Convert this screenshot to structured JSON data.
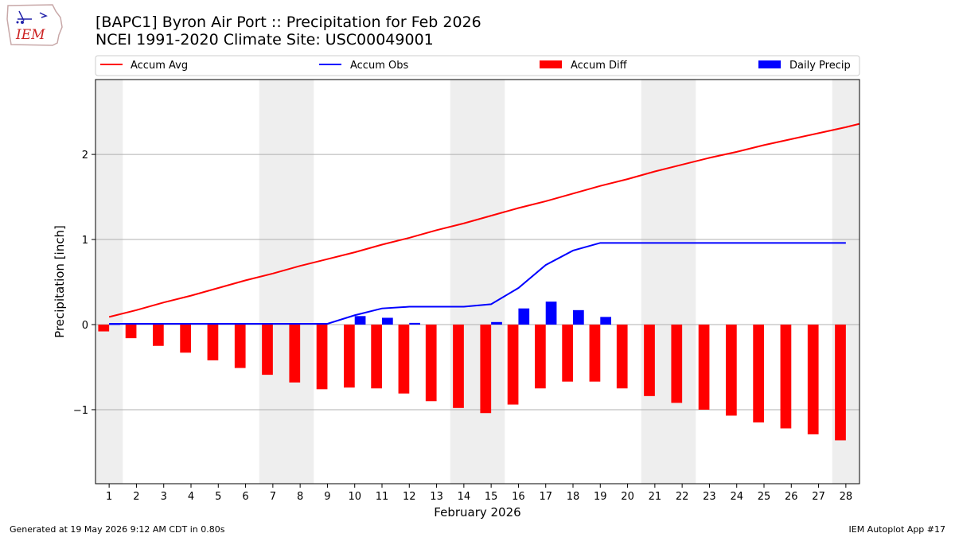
{
  "header": {
    "title_line1": "[BAPC1] Byron Air Port :: Precipitation for Feb 2026",
    "title_line2": "NCEI 1991-2020 Climate Site: USC00049001"
  },
  "logo": {
    "text": "IEM"
  },
  "footer": {
    "generated": "Generated at 19 May 2026 9:12 AM CDT in 0.80s",
    "app": "IEM Autoplot App #17"
  },
  "colors": {
    "avg": "#ff0000",
    "obs": "#0000ff",
    "diff": "#ff0000",
    "daily": "#0000ff",
    "weekend": "#eeeeee",
    "grid": "#b0b0b0"
  },
  "chart_data": {
    "type": "bar",
    "xlabel": "February 2026",
    "ylabel": "Precipitation [inch]",
    "ylim": [
      -1.87,
      2.88
    ],
    "xlim": [
      0.5,
      28.5
    ],
    "yticks": [
      -1,
      0,
      1,
      2
    ],
    "ytick_labels": [
      "−1",
      "0",
      "1",
      "2"
    ],
    "grid": "y",
    "legend_placement": "top, above plot",
    "days": [
      1,
      2,
      3,
      4,
      5,
      6,
      7,
      8,
      9,
      10,
      11,
      12,
      13,
      14,
      15,
      16,
      17,
      18,
      19,
      20,
      21,
      22,
      23,
      24,
      25,
      26,
      27,
      28
    ],
    "weekend_days": [
      1,
      7,
      8,
      14,
      15,
      21,
      22,
      28
    ],
    "series": [
      {
        "name": "Accum Avg",
        "kind": "line",
        "x": [
          1,
          2,
          3,
          4,
          5,
          6,
          7,
          8,
          9,
          10,
          11,
          12,
          13,
          14,
          15,
          16,
          17,
          18,
          19,
          20,
          21,
          22,
          23,
          24,
          25,
          26,
          27,
          28,
          28.5
        ],
        "values": [
          0.09,
          0.17,
          0.26,
          0.34,
          0.43,
          0.52,
          0.6,
          0.69,
          0.77,
          0.85,
          0.94,
          1.02,
          1.11,
          1.19,
          1.28,
          1.37,
          1.45,
          1.54,
          1.63,
          1.71,
          1.8,
          1.88,
          1.96,
          2.03,
          2.11,
          2.18,
          2.25,
          2.32,
          2.36
        ]
      },
      {
        "name": "Accum Obs",
        "kind": "line",
        "x": [
          1,
          2,
          3,
          4,
          5,
          6,
          7,
          8,
          9,
          10,
          11,
          12,
          13,
          14,
          15,
          16,
          17,
          18,
          19,
          20,
          21,
          22,
          23,
          24,
          25,
          26,
          27,
          28
        ],
        "values": [
          0.01,
          0.01,
          0.01,
          0.01,
          0.01,
          0.01,
          0.01,
          0.01,
          0.01,
          0.11,
          0.19,
          0.21,
          0.21,
          0.21,
          0.24,
          0.43,
          0.7,
          0.87,
          0.96,
          0.96,
          0.96,
          0.96,
          0.96,
          0.96,
          0.96,
          0.96,
          0.96,
          0.96
        ]
      },
      {
        "name": "Accum Diff",
        "kind": "bar",
        "values": [
          -0.08,
          -0.16,
          -0.25,
          -0.33,
          -0.42,
          -0.51,
          -0.59,
          -0.68,
          -0.76,
          -0.74,
          -0.75,
          -0.81,
          -0.9,
          -0.98,
          -1.04,
          -0.94,
          -0.75,
          -0.67,
          -0.67,
          -0.75,
          -0.84,
          -0.92,
          -1.0,
          -1.07,
          -1.15,
          -1.22,
          -1.29,
          -1.36
        ]
      },
      {
        "name": "Daily Precip",
        "kind": "bar",
        "values": [
          0.01,
          0,
          0,
          0,
          0,
          0,
          0,
          0,
          0,
          0.1,
          0.08,
          0.02,
          0,
          0,
          0.03,
          0.19,
          0.27,
          0.17,
          0.09,
          0,
          0,
          0,
          0,
          0,
          0,
          0,
          0,
          0
        ]
      }
    ]
  }
}
